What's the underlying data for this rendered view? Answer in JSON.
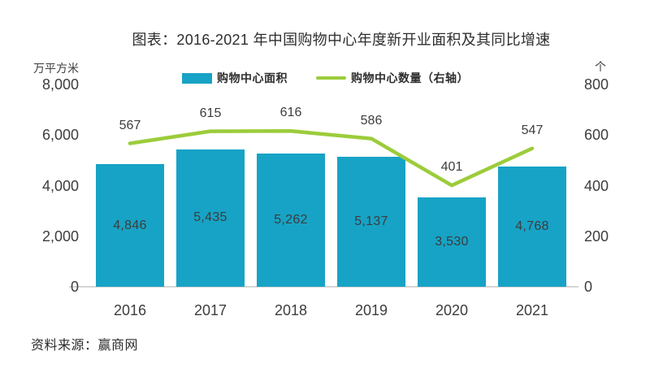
{
  "title": "图表：2016-2021 年中国购物中心年度新开业面积及其同比增速",
  "source": "资料来源：赢商网",
  "legend": {
    "bar_label": "购物中心面积",
    "line_label": "购物中心数量（右轴）"
  },
  "colors": {
    "bar": "#17a3c6",
    "line": "#9ccc3b",
    "label_text": "#3d3d3d",
    "axis_line": "#d6d6d6"
  },
  "left_axis": {
    "unit": "万平方米",
    "max": 8000,
    "ticks": [
      {
        "value": 8000,
        "label": "8,000"
      },
      {
        "value": 6000,
        "label": "6,000"
      },
      {
        "value": 4000,
        "label": "4,000"
      },
      {
        "value": 2000,
        "label": "2,000"
      },
      {
        "value": 0,
        "label": "0"
      }
    ]
  },
  "right_axis": {
    "unit": "个",
    "max": 800,
    "ticks": [
      {
        "value": 800,
        "label": "800"
      },
      {
        "value": 600,
        "label": "600"
      },
      {
        "value": 400,
        "label": "400"
      },
      {
        "value": 200,
        "label": "200"
      },
      {
        "value": 0,
        "label": "0"
      }
    ]
  },
  "chart_data": {
    "type": "combo-bar-line",
    "title": "图表：2016-2021 年中国购物中心年度新开业面积及其同比增速",
    "categories": [
      "2016",
      "2017",
      "2018",
      "2019",
      "2020",
      "2021"
    ],
    "series": [
      {
        "name": "购物中心面积",
        "type": "bar",
        "axis": "left",
        "color": "#17a3c6",
        "values": [
          4846,
          5435,
          5262,
          5137,
          3530,
          4768
        ],
        "labels": [
          "4,846",
          "5,435",
          "5,262",
          "5,137",
          "3,530",
          "4,768"
        ]
      },
      {
        "name": "购物中心数量（右轴）",
        "type": "line",
        "axis": "right",
        "color": "#9ccc3b",
        "values": [
          567,
          615,
          616,
          586,
          401,
          547
        ],
        "labels": [
          "567",
          "615",
          "616",
          "586",
          "401",
          "547"
        ]
      }
    ],
    "left_axis_label": "万平方米",
    "right_axis_label": "个",
    "left_ylim": [
      0,
      8000
    ],
    "right_ylim": [
      0,
      800
    ],
    "grid": false,
    "legend_position": "top"
  }
}
